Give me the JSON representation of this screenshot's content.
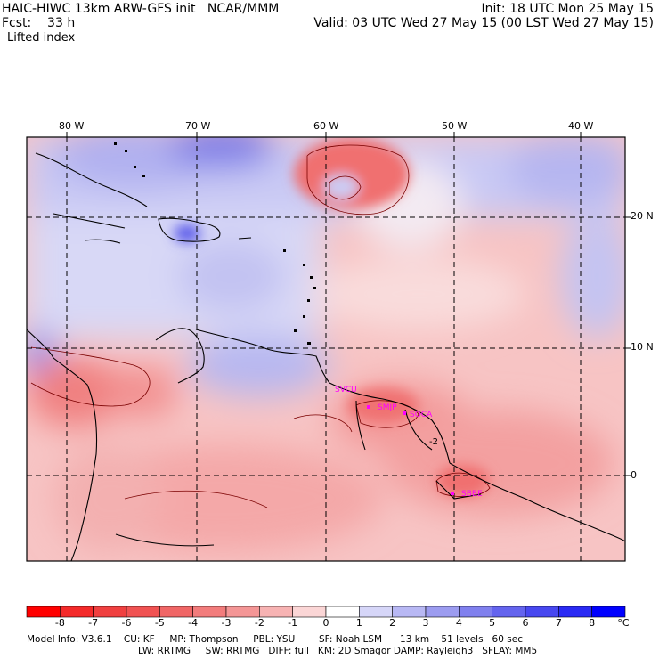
{
  "header": {
    "title_left": "HAIC-HIWC 13km ARW-GFS init   NCAR/MMM",
    "init": "Init: 18 UTC Mon 25 May 15",
    "fcst": "Fcst:    33 h",
    "valid": "Valid: 03 UTC Wed 27 May 15 (00 LST Wed 27 May 15)",
    "field": "Lifted index"
  },
  "map": {
    "lon_labels": [
      "80 W",
      "70 W",
      "60 W",
      "50 W",
      "40 W"
    ],
    "lat_labels": [
      "20 N",
      "10 N",
      "0"
    ],
    "contour_label": "-2",
    "sites": [
      {
        "name": "SVCU"
      },
      {
        "name": "SMJP"
      },
      {
        "name": "SOCA"
      },
      {
        "name": "SBBE"
      }
    ]
  },
  "colorbar": {
    "labels": [
      "-8",
      "-7",
      "-6",
      "-5",
      "-4",
      "-3",
      "-2",
      "-1",
      "0",
      "1",
      "2",
      "3",
      "4",
      "5",
      "6",
      "7",
      "8"
    ],
    "unit": "°C",
    "colors": [
      "#ff0000",
      "#f42a2a",
      "#f04040",
      "#f05252",
      "#f06666",
      "#f27c7c",
      "#f49696",
      "#f7b3b3",
      "#fbd6d6",
      "#ffffff",
      "#d6d6f8",
      "#b8b8f4",
      "#9c9cf0",
      "#8080ee",
      "#6464ee",
      "#4848f0",
      "#2a2af4",
      "#0000ff"
    ]
  },
  "footer": {
    "line1": "Model Info: V3.6.1    CU: KF     MP: Thompson     PBL: YSU        SF: Noah LSM      13 km    51 levels   60 sec",
    "line2": "LW: RRTMG     SW: RRTMG   DIFF: full   KM: 2D Smagor DAMP: Rayleigh3   SFLAY: MM5"
  }
}
